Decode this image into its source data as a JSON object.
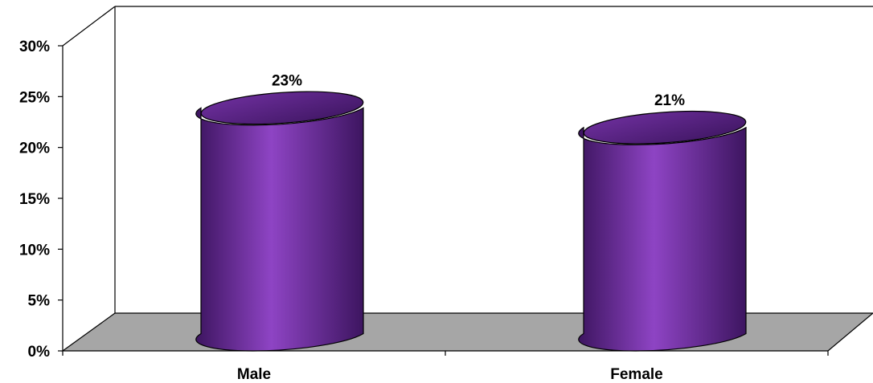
{
  "chart_data": {
    "type": "bar",
    "style": "3d-cylinder",
    "categories": [
      "Male",
      "Female"
    ],
    "values": [
      23,
      21
    ],
    "data_labels": [
      "23%",
      "21%"
    ],
    "ylim": [
      0,
      30
    ],
    "yticks": [
      0,
      5,
      10,
      15,
      20,
      25,
      30
    ],
    "ytick_labels": [
      "0%",
      "5%",
      "10%",
      "15%",
      "20%",
      "25%",
      "30%"
    ],
    "grid": false,
    "legend": "none",
    "colors": {
      "bar": "#7030a0",
      "bar_dark": "#3d1560",
      "bar_light": "#8e44c4",
      "floor": "#a6a6a6",
      "axis": "#000000"
    }
  }
}
